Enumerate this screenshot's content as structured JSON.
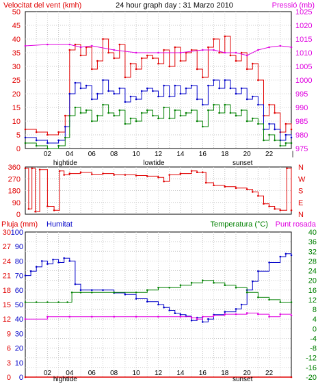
{
  "header": {
    "left_title": "Velocitat del vent (kmh)",
    "center_title": "24 hour graph day : 31 Marzo 2010",
    "right_title": "Pressió (mb)"
  },
  "x_axis": {
    "ticks": [
      "02",
      "04",
      "06",
      "08",
      "10",
      "12",
      "14",
      "16",
      "18",
      "20",
      "22"
    ],
    "events": {
      "hightide": "hightide",
      "lowtide": "lowtide",
      "sunset": "sunset"
    }
  },
  "colors": {
    "wind_gust": "#e00000",
    "wind_avg": "#0000c8",
    "wind_min": "#008000",
    "pressure": "#e000e0",
    "direction": "#e00000",
    "humidity": "#0000c8",
    "temperature": "#008000",
    "dewpoint": "#e000e0",
    "rain": "#e00000"
  },
  "chart_data": [
    {
      "type": "line",
      "id": "wind",
      "title": "",
      "left_axis_label": "Velocitat del vent (kmh)",
      "right_axis_label": "Pressió (mb)",
      "ylim_left": [
        0,
        50
      ],
      "yticks_left": [
        "0",
        "5",
        "10",
        "15",
        "20",
        "25",
        "30",
        "35",
        "40",
        "45",
        "50"
      ],
      "ylim_right": [
        975,
        1025
      ],
      "yticks_right": [
        "975",
        "980",
        "985",
        "990",
        "995",
        "1000",
        "1005",
        "1010",
        "1015",
        "1020",
        "1025"
      ],
      "xlim": [
        0,
        24
      ],
      "grid": true,
      "series": [
        {
          "key": "gust",
          "axis": "left",
          "x": [
            0,
            1,
            2,
            3,
            3.6,
            4,
            4.5,
            5,
            5.5,
            6,
            6.5,
            7,
            7.5,
            8,
            8.5,
            9,
            9.5,
            10,
            10.5,
            11,
            11.5,
            12,
            12.5,
            13,
            13.5,
            14,
            14.5,
            15,
            15.5,
            16,
            16.5,
            17,
            17.5,
            18,
            18.5,
            19,
            19.5,
            20,
            20.5,
            21,
            21.5,
            22,
            22.5,
            23,
            23.5,
            24
          ],
          "y": [
            7,
            6,
            5,
            6,
            12,
            36,
            38,
            34,
            37,
            29,
            32,
            40,
            35,
            33,
            38,
            26,
            31,
            29,
            33,
            34,
            33,
            31,
            36,
            30,
            37,
            32,
            35,
            36,
            29,
            26,
            37,
            40,
            35,
            41,
            34,
            32,
            35,
            29,
            31,
            25,
            12,
            16,
            13,
            6,
            9,
            7
          ]
        },
        {
          "key": "average",
          "axis": "left",
          "x": [
            0,
            1,
            2,
            3,
            3.6,
            4,
            4.5,
            5,
            5.5,
            6,
            6.5,
            7,
            7.5,
            8,
            8.5,
            9,
            9.5,
            10,
            10.5,
            11,
            11.5,
            12,
            12.5,
            13,
            13.5,
            14,
            14.5,
            15,
            15.5,
            16,
            16.5,
            17,
            17.5,
            18,
            18.5,
            19,
            19.5,
            20,
            20.5,
            21,
            21.5,
            22,
            22.5,
            23,
            23.5,
            24
          ],
          "y": [
            4,
            3,
            2,
            3,
            8,
            20,
            24,
            22,
            23,
            18,
            20,
            25,
            21,
            20,
            22,
            17,
            19,
            18,
            21,
            22,
            21,
            19,
            23,
            19,
            23,
            20,
            22,
            23,
            18,
            16,
            23,
            25,
            22,
            25,
            22,
            20,
            22,
            18,
            19,
            16,
            7,
            9,
            7,
            3,
            5,
            4
          ]
        },
        {
          "key": "minimum",
          "axis": "left",
          "x": [
            0,
            1,
            2,
            3,
            3.6,
            4,
            4.5,
            5,
            5.5,
            6,
            6.5,
            7,
            7.5,
            8,
            8.5,
            9,
            9.5,
            10,
            10.5,
            11,
            11.5,
            12,
            12.5,
            13,
            13.5,
            14,
            14.5,
            15,
            15.5,
            16,
            16.5,
            17,
            17.5,
            18,
            18.5,
            19,
            19.5,
            20,
            20.5,
            21,
            21.5,
            22,
            22.5,
            23,
            23.5,
            24
          ],
          "y": [
            2,
            1,
            0,
            1,
            4,
            12,
            15,
            13,
            14,
            10,
            12,
            16,
            13,
            12,
            14,
            9,
            11,
            10,
            13,
            14,
            12,
            11,
            15,
            11,
            14,
            12,
            13,
            14,
            10,
            8,
            14,
            16,
            13,
            16,
            13,
            12,
            14,
            10,
            11,
            9,
            3,
            5,
            3,
            1,
            2,
            2
          ]
        },
        {
          "key": "pressure",
          "axis": "right",
          "x": [
            0,
            2,
            4,
            5,
            6,
            8,
            10,
            12,
            14,
            16,
            17,
            18,
            19,
            20,
            21,
            22,
            23,
            24
          ],
          "y": [
            1012.5,
            1013,
            1013,
            1012,
            1012.5,
            1011,
            1010,
            1010,
            1010,
            1011,
            1011,
            1010,
            1010,
            1009,
            1011,
            1012,
            1012.5,
            1012
          ]
        }
      ]
    },
    {
      "type": "scatter",
      "id": "direction",
      "ylim": [
        0,
        360
      ],
      "yticks": [
        "0",
        "90",
        "180",
        "270",
        "360"
      ],
      "compass": [
        "N",
        "W",
        "S",
        "E",
        "N"
      ],
      "xlim": [
        0,
        24
      ],
      "grid": true,
      "series": [
        {
          "key": "direction",
          "x": [
            0,
            0.3,
            0.6,
            0.9,
            1.3,
            2,
            2.6,
            3.1,
            3.5,
            4,
            5,
            6,
            7,
            8,
            9,
            10,
            11,
            12,
            12.5,
            13,
            14,
            15,
            15.5,
            16,
            16.3,
            17,
            18,
            19,
            20,
            20.5,
            21,
            21.5,
            22,
            22.5,
            23,
            23.6,
            24
          ],
          "y": [
            350,
            40,
            350,
            20,
            340,
            60,
            30,
            330,
            300,
            310,
            320,
            305,
            310,
            300,
            300,
            295,
            290,
            280,
            250,
            300,
            310,
            330,
            320,
            320,
            240,
            220,
            210,
            200,
            190,
            170,
            140,
            80,
            60,
            40,
            30,
            350,
            30
          ]
        }
      ]
    },
    {
      "type": "line",
      "id": "temp_hum",
      "left_axis_labels": [
        "Pluja (mm)",
        "Humitat"
      ],
      "right_axis_labels": [
        "Temperatura (°C)",
        "Punt rosada"
      ],
      "ylim_rain": [
        0,
        30
      ],
      "yticks_rain": [
        "0",
        "3",
        "6",
        "9",
        "12",
        "15",
        "18",
        "21",
        "24",
        "27",
        "30"
      ],
      "ylim_humidity": [
        0,
        100
      ],
      "yticks_humidity": [
        "0",
        "10",
        "20",
        "30",
        "40",
        "50",
        "60",
        "70",
        "80",
        "90",
        "100"
      ],
      "ylim_temp": [
        -20,
        40
      ],
      "yticks_temp": [
        "-20",
        "-16",
        "-12",
        "-8",
        "-4",
        "0",
        "4",
        "8",
        "12",
        "16",
        "20",
        "24",
        "28",
        "32",
        "36",
        "40"
      ],
      "xlim": [
        0,
        24
      ],
      "grid": true,
      "series": [
        {
          "key": "humidity",
          "axis": "humidity",
          "x": [
            0,
            0.5,
            1,
            1.5,
            2,
            2.5,
            3,
            3.5,
            4,
            4.5,
            5,
            6,
            7,
            8,
            9,
            10,
            11,
            12,
            12.5,
            13,
            13.5,
            14,
            14.5,
            15,
            15.5,
            16,
            16.5,
            17,
            18,
            19,
            19.5,
            20,
            20.5,
            21,
            22,
            23,
            23.5,
            24
          ],
          "y": [
            70,
            73,
            76,
            80,
            78,
            81,
            79,
            82,
            80,
            64,
            60,
            60,
            60,
            58,
            57,
            54,
            52,
            50,
            48,
            46,
            44,
            43,
            42,
            39,
            41,
            38,
            40,
            43,
            45,
            47,
            50,
            60,
            66,
            73,
            79,
            83,
            85,
            84
          ]
        },
        {
          "key": "temperature",
          "axis": "temp",
          "x": [
            0,
            1,
            2,
            3,
            3.8,
            4.2,
            5,
            6,
            8,
            10,
            11,
            12,
            13,
            14,
            15,
            16,
            17,
            18,
            19,
            20,
            21,
            22,
            23,
            24
          ],
          "y": [
            11,
            11,
            11,
            11,
            11,
            15,
            15,
            15,
            15,
            15,
            16,
            17,
            17,
            18,
            19,
            20,
            19,
            18,
            17,
            15,
            13,
            12,
            11,
            11
          ]
        },
        {
          "key": "dewpoint",
          "axis": "temp",
          "x": [
            0,
            2,
            4,
            6,
            8,
            10,
            12,
            14,
            15,
            15.5,
            16,
            17,
            18,
            19,
            20,
            21,
            22,
            23,
            24
          ],
          "y": [
            4,
            5,
            5,
            5,
            5,
            5,
            5,
            5,
            4.5,
            4,
            5,
            5.5,
            6,
            6,
            6.5,
            6,
            5,
            6,
            5.5
          ]
        },
        {
          "key": "rain",
          "axis": "rain",
          "x": [
            0,
            24
          ],
          "y": [
            0,
            0
          ]
        }
      ]
    }
  ]
}
